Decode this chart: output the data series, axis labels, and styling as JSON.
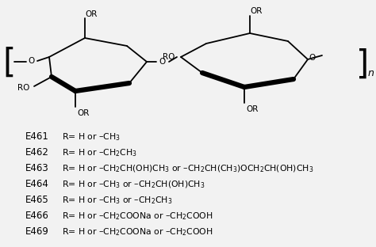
{
  "figsize": [
    4.74,
    3.12
  ],
  "dpi": 100,
  "bg_color": "#f2f2f2",
  "lines": [
    {
      "code": "E461",
      "text": "R= H or –CH$_3$"
    },
    {
      "code": "E462",
      "text": "R= H or –CH$_2$CH$_3$"
    },
    {
      "code": "E463",
      "text": "R= H or –CH$_2$CH(OH)CH$_3$ or –CH$_2$CH(CH$_3$)OCH$_2$CH(OH)CH$_3$"
    },
    {
      "code": "E464",
      "text": "R= H or –CH$_3$ or –CH$_2$CH(OH)CH$_3$"
    },
    {
      "code": "E465",
      "text": "R= H or –CH$_3$ or –CH$_2$CH$_3$"
    },
    {
      "code": "E466",
      "text": "R= H or –CH$_2$COONa or –CH$_2$COOH"
    },
    {
      "code": "E469",
      "text": "R= H or –CH$_2$COONa or –CH$_2$COOH"
    }
  ],
  "lw_thin": 1.3,
  "lw_thick": 4.5,
  "fs_label": 7.5,
  "fs_bracket": 30,
  "fs_code": 8.5,
  "fs_text": 7.8
}
